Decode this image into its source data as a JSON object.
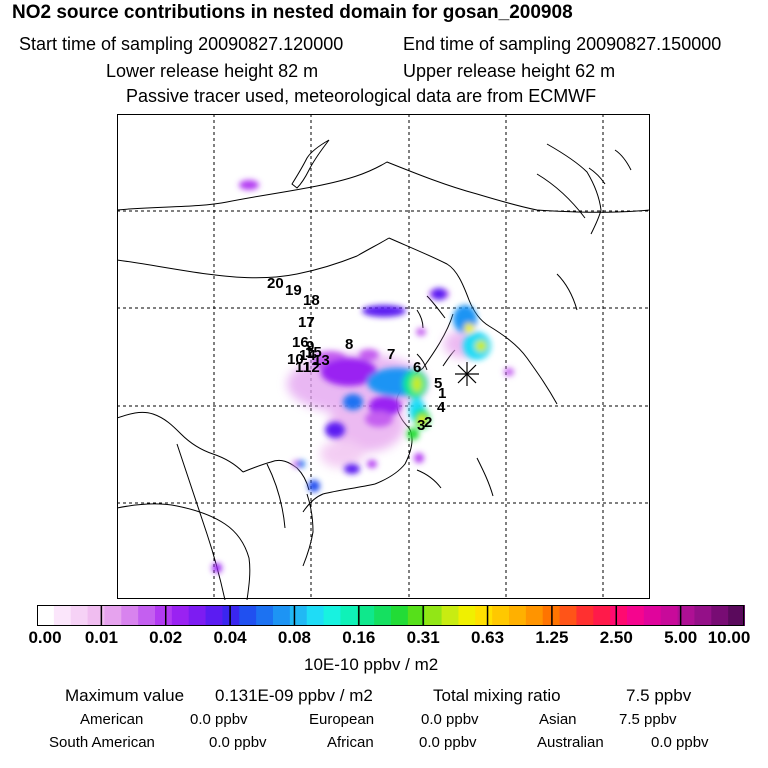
{
  "header": {
    "title": "NO2 source contributions in nested domain for gosan_200908",
    "start_label": "Start time of sampling 20090827.120000",
    "end_label": "End time of sampling 20090827.150000",
    "lower_label": "Lower release height   82 m",
    "upper_label": "Upper release height   62 m",
    "tracer_note": "Passive tracer used, meteorological data are from ECMWF"
  },
  "map": {
    "trajectory_labels": [
      "1",
      "2",
      "3",
      "4",
      "5",
      "6",
      "7",
      "8",
      "9",
      "10",
      "11",
      "12",
      "13",
      "14",
      "15",
      "16",
      "17",
      "18",
      "19",
      "20"
    ]
  },
  "colorbar": {
    "ticks": [
      "0.00",
      "0.01",
      "0.02",
      "0.04",
      "0.08",
      "0.16",
      "0.31",
      "0.63",
      "1.25",
      "2.50",
      "5.00",
      "10.00"
    ],
    "colors": [
      "#ffffff",
      "#fbe6fb",
      "#f6d2f6",
      "#f0bdf0",
      "#e6a3ee",
      "#d883ee",
      "#c45ff0",
      "#b23af2",
      "#9a22f2",
      "#7d1cf2",
      "#5b1cf2",
      "#3a26f0",
      "#2050f0",
      "#1c72f2",
      "#1d94f4",
      "#21b8f4",
      "#1fdcf6",
      "#18f2e0",
      "#0ff2b8",
      "#0fe88c",
      "#15e060",
      "#22dc36",
      "#56e01a",
      "#92e616",
      "#c8ec12",
      "#f0f000",
      "#ffe000",
      "#ffc800",
      "#ffb000",
      "#ff9400",
      "#ff7400",
      "#ff5418",
      "#ff3030",
      "#ff1a4a",
      "#ff0a70",
      "#f5058e",
      "#e0049c",
      "#c80a9a",
      "#ae1094",
      "#941088",
      "#780c74",
      "#5a0a5c"
    ],
    "unit_label": "10E-10 ppbv / m2"
  },
  "summary": {
    "max_label": "Maximum value",
    "max_value": "0.131E-09 ppbv / m2",
    "total_label": "Total mixing ratio",
    "total_value": "7.5 ppbv",
    "regions": [
      {
        "name": "American",
        "value": "0.0 ppbv"
      },
      {
        "name": "European",
        "value": "0.0 ppbv"
      },
      {
        "name": "Asian",
        "value": "7.5 ppbv"
      },
      {
        "name": "South American",
        "value": "0.0 ppbv"
      },
      {
        "name": "African",
        "value": "0.0 ppbv"
      },
      {
        "name": "Australian",
        "value": "0.0 ppbv"
      }
    ]
  }
}
